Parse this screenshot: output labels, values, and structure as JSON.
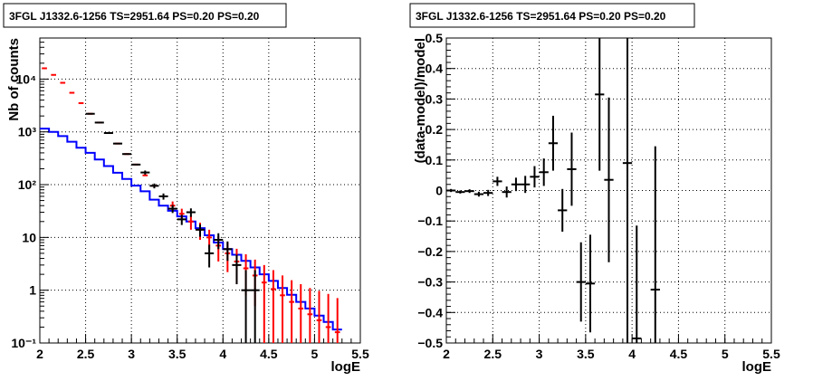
{
  "chart_data": [
    {
      "type": "line",
      "title": "3FGL J1332.6-1256 TS=2951.64 PS=0.20 PS=0.20",
      "xlabel": "logE",
      "ylabel": "Nb of counts",
      "xlim": [
        2,
        5.5
      ],
      "ylim": [
        0.1,
        60000
      ],
      "yscale": "log",
      "grid": true,
      "xticks": [
        2,
        2.5,
        3,
        3.5,
        4,
        4.5,
        5,
        5.5
      ],
      "xtick_labels": [
        "2",
        "2.5",
        "3",
        "3.5",
        "4",
        "4.5",
        "5",
        "5.5"
      ],
      "yticks": [
        0.1,
        1,
        10,
        100,
        1000,
        10000
      ],
      "ytick_labels": [
        "10⁻¹",
        "1",
        "10",
        "10²",
        "10³",
        "10⁴"
      ],
      "bin_edges": [
        2.0,
        2.1,
        2.2,
        2.3,
        2.4,
        2.5,
        2.6,
        2.7,
        2.8,
        2.9,
        3.0,
        3.1,
        3.2,
        3.3,
        3.4,
        3.5,
        3.6,
        3.7,
        3.8,
        3.9,
        4.0,
        4.1,
        4.2,
        4.3,
        4.4,
        4.5,
        4.6,
        4.7,
        4.8,
        4.9,
        5.0,
        5.1,
        5.2,
        5.3
      ],
      "series": [
        {
          "color": "#0000ff",
          "kind": "step",
          "values": [
            1150,
            1000,
            830,
            650,
            500,
            400,
            300,
            225,
            168,
            128,
            96,
            75,
            52,
            40,
            32,
            25,
            20,
            15,
            11,
            8,
            6,
            4.7,
            3.6,
            2.7,
            2.0,
            1.5,
            1.1,
            0.82,
            0.6,
            0.45,
            0.33,
            0.25,
            0.18
          ]
        },
        {
          "color": "#ff0000",
          "kind": "errorbar",
          "x": [
            2.05,
            2.15,
            2.25,
            2.35,
            2.45,
            2.55,
            2.65,
            2.75,
            2.85,
            2.95,
            3.05,
            3.15,
            3.25,
            3.35,
            3.45,
            3.55,
            3.65,
            3.75,
            3.85,
            3.95,
            4.05,
            4.15,
            4.25,
            4.35,
            4.45,
            4.55,
            4.65,
            4.75,
            4.85,
            4.95,
            5.05,
            5.15,
            5.25
          ],
          "y": [
            16000,
            12000,
            8500,
            5500,
            3500,
            2200,
            1500,
            950,
            600,
            380,
            240,
            150,
            95,
            60,
            40,
            28,
            20,
            14,
            10,
            7,
            5,
            3.5,
            2.6,
            1.9,
            1.4,
            1.05,
            0.8,
            0.6,
            0.45,
            0.35,
            0.27,
            0.2,
            0.16
          ],
          "yerr_low": [
            0,
            0,
            0,
            0,
            0,
            0,
            0,
            0,
            0,
            0,
            0,
            0,
            0,
            0,
            8,
            7,
            6,
            5,
            4,
            3.5,
            2.8,
            2.2,
            1.8,
            1.4,
            1.3,
            1.0,
            0.8,
            0.6,
            0.45,
            0.35,
            0.27,
            0.2,
            0.16
          ],
          "yerr_high": [
            0,
            0,
            0,
            0,
            0,
            0,
            0,
            0,
            0,
            0,
            0,
            0,
            0,
            0,
            8,
            7,
            6,
            5,
            4,
            3.5,
            3,
            2.6,
            2.2,
            1.9,
            1.6,
            1.35,
            1.1,
            0.95,
            0.85,
            0.75,
            0.7,
            0.65,
            0.55
          ]
        },
        {
          "color": "#000000",
          "kind": "errorbar",
          "x": [
            2.55,
            2.65,
            2.75,
            2.85,
            2.95,
            3.05,
            3.15,
            3.25,
            3.35,
            3.45,
            3.55,
            3.65,
            3.75,
            3.85,
            3.95,
            4.05,
            4.15,
            4.25,
            4.35
          ],
          "y": [
            2200,
            1500,
            950,
            600,
            380,
            240,
            170,
            95,
            60,
            35,
            22,
            30,
            14,
            5,
            9,
            6,
            3,
            1,
            1
          ],
          "yerr_low": [
            0,
            0,
            0,
            0,
            0,
            0,
            15,
            10,
            8,
            6,
            4.8,
            5.5,
            3.7,
            2.3,
            3,
            2.4,
            1.7,
            0.9,
            0.9
          ],
          "yerr_high": [
            0,
            0,
            0,
            0,
            0,
            0,
            15,
            10,
            8,
            6,
            4.8,
            5.5,
            3.7,
            2.3,
            3,
            2.4,
            1.7,
            1.4,
            1.4
          ]
        }
      ]
    },
    {
      "type": "scatter",
      "title": "3FGL J1332.6-1256 TS=2951.64 PS=0.20 PS=0.20",
      "xlabel": "logE",
      "ylabel": "(data-model)/model",
      "xlim": [
        2,
        5.5
      ],
      "ylim": [
        -0.5,
        0.5
      ],
      "grid": true,
      "xticks": [
        2,
        2.5,
        3,
        3.5,
        4,
        4.5,
        5,
        5.5
      ],
      "xtick_labels": [
        "2",
        "2.5",
        "3",
        "3.5",
        "4",
        "4.5",
        "5",
        "5.5"
      ],
      "yticks": [
        -0.5,
        -0.4,
        -0.3,
        -0.2,
        -0.1,
        0,
        0.1,
        0.2,
        0.3,
        0.4,
        0.5
      ],
      "ytick_labels": [
        "−0.5",
        "−0.4",
        "−0.3",
        "−0.2",
        "−0.1",
        "0",
        "0.1",
        "0.2",
        "0.3",
        "0.4",
        "0.5"
      ],
      "series": [
        {
          "color": "#000000",
          "x": [
            2.05,
            2.15,
            2.25,
            2.35,
            2.45,
            2.55,
            2.65,
            2.75,
            2.85,
            2.95,
            3.05,
            3.15,
            3.25,
            3.35,
            3.45,
            3.55,
            3.65,
            3.75,
            3.85,
            3.95,
            4.05,
            4.15,
            4.25
          ],
          "y": [
            0.0,
            -0.005,
            -0.002,
            -0.012,
            -0.008,
            0.03,
            -0.005,
            0.02,
            0.02,
            0.045,
            0.06,
            0.155,
            -0.065,
            0.07,
            -0.3,
            -0.305,
            0.315,
            0.035,
            null,
            0.09,
            -0.485,
            null,
            -0.325
          ],
          "yerr": [
            0.005,
            0.005,
            0.006,
            0.008,
            0.01,
            0.015,
            0.018,
            0.022,
            0.028,
            0.035,
            0.045,
            0.09,
            0.07,
            0.12,
            0.13,
            0.16,
            0.25,
            0.27,
            null,
            0.6,
            0.37,
            null,
            0.47
          ]
        }
      ]
    }
  ]
}
